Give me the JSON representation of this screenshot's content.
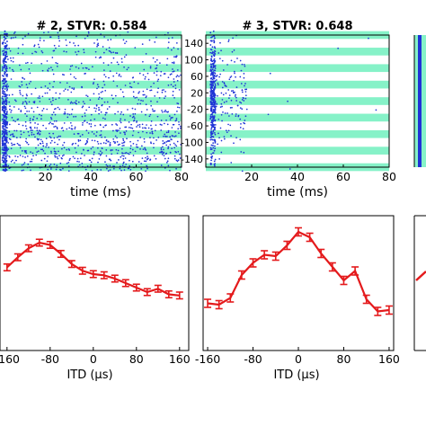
{
  "chart_data": [
    {
      "type": "scatter",
      "title": "# 2, STVR: 0.584",
      "xlabel": "time (ms)",
      "xlim": [
        0,
        80
      ],
      "ylim": [
        -160,
        160
      ],
      "x_ticks": [
        20,
        40,
        60,
        80
      ],
      "itd_rows": [
        -160,
        -140,
        -120,
        -100,
        -80,
        -60,
        -40,
        -20,
        0,
        20,
        40,
        60,
        80,
        100,
        120,
        140,
        160
      ],
      "density": [
        1.4,
        1.6,
        1.9,
        2.0,
        1.8,
        1.6,
        1.3,
        1.2,
        1.1,
        1.0,
        0.9,
        0.8,
        0.8,
        0.7,
        0.7,
        0.6,
        0.6
      ],
      "onset_ms": 1,
      "marker_color": "#1f33d6",
      "band_color": "#86f2c8"
    },
    {
      "type": "scatter",
      "title": "# 3, STVR: 0.648",
      "xlabel": "time (ms)",
      "xlim": [
        0,
        80
      ],
      "ylim": [
        -160,
        160
      ],
      "x_ticks": [
        20,
        40,
        60,
        80
      ],
      "y_ticks": [
        140,
        100,
        60,
        20,
        -20,
        -60,
        -100,
        -140
      ],
      "itd_rows": [
        -160,
        -140,
        -120,
        -100,
        -80,
        -60,
        -40,
        -20,
        0,
        20,
        40,
        60,
        80,
        100,
        120,
        140,
        160
      ],
      "density": [
        0.1,
        0.15,
        0.3,
        0.5,
        0.8,
        1.0,
        1.2,
        1.5,
        1.8,
        2.0,
        1.6,
        1.3,
        1.0,
        0.7,
        0.5,
        0.3,
        0.2
      ],
      "onset_ms": 2,
      "marker_color": "#1f33d6",
      "band_color": "#86f2c8"
    },
    {
      "type": "line",
      "xlabel": "ITD (µs)",
      "x_ticks": [
        -160,
        -80,
        0,
        80,
        160
      ],
      "x_tick_labels": [
        "-160",
        "-80",
        "0",
        "80",
        "160"
      ],
      "x": [
        -160,
        -140,
        -120,
        -100,
        -80,
        -60,
        -40,
        -20,
        0,
        20,
        40,
        60,
        80,
        100,
        120,
        140,
        160
      ],
      "y": [
        0.74,
        0.83,
        0.91,
        0.96,
        0.94,
        0.86,
        0.77,
        0.71,
        0.68,
        0.67,
        0.64,
        0.6,
        0.56,
        0.52,
        0.55,
        0.5,
        0.49
      ],
      "err": [
        0.03,
        0.03,
        0.03,
        0.03,
        0.03,
        0.03,
        0.03,
        0.03,
        0.03,
        0.03,
        0.03,
        0.03,
        0.03,
        0.03,
        0.03,
        0.03,
        0.03
      ],
      "ylim": [
        0,
        1.2
      ],
      "color": "#e41a1c"
    },
    {
      "type": "line",
      "xlabel": "ITD (µs)",
      "x_ticks": [
        -160,
        -80,
        0,
        80,
        160
      ],
      "x_tick_labels": [
        "-160",
        "-80",
        "0",
        "80",
        "160"
      ],
      "x": [
        -160,
        -140,
        -120,
        -100,
        -80,
        -60,
        -40,
        -20,
        0,
        20,
        40,
        60,
        80,
        100,
        120,
        140,
        160
      ],
      "y": [
        0.35,
        0.34,
        0.39,
        0.56,
        0.65,
        0.71,
        0.7,
        0.78,
        0.88,
        0.84,
        0.72,
        0.62,
        0.52,
        0.59,
        0.38,
        0.29,
        0.3
      ],
      "err": [
        0.03,
        0.03,
        0.03,
        0.03,
        0.03,
        0.03,
        0.03,
        0.03,
        0.03,
        0.03,
        0.03,
        0.03,
        0.03,
        0.03,
        0.03,
        0.03,
        0.03
      ],
      "ylim": [
        0,
        1.0
      ],
      "color": "#e41a1c"
    }
  ]
}
